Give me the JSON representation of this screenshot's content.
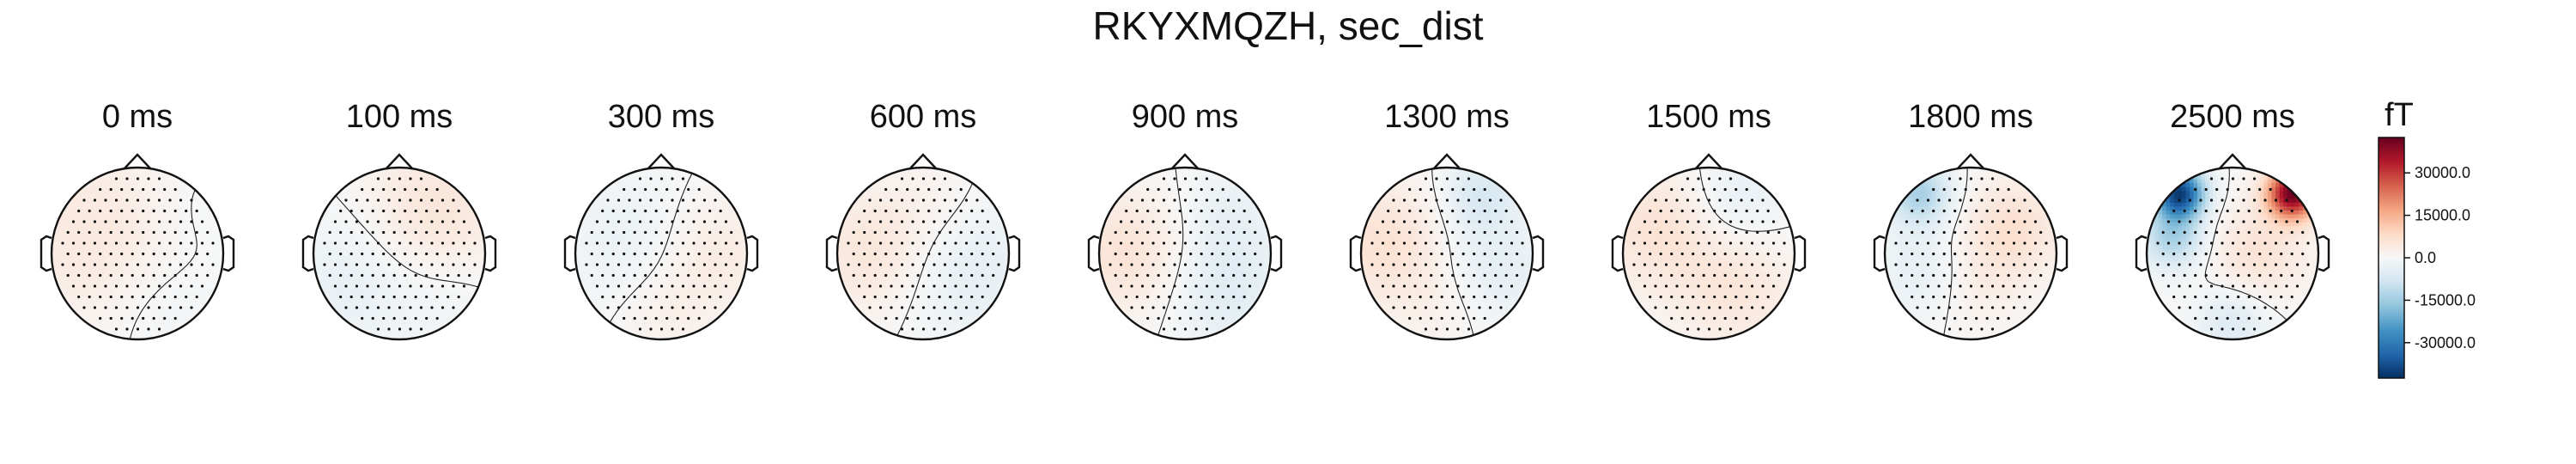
{
  "chart_data": {
    "type": "topomap",
    "title": "RKYXMQZH, sec_dist",
    "panels": [
      {
        "time_label": "0 ms",
        "blobs": [
          {
            "x": -0.5,
            "y": 0.2,
            "s": 0.75,
            "v": 4500
          },
          {
            "x": 0.3,
            "y": -0.6,
            "s": 0.5,
            "v": -2000
          },
          {
            "x": 0.6,
            "y": 0.5,
            "s": 0.4,
            "v": -1200
          }
        ]
      },
      {
        "time_label": "100 ms",
        "blobs": [
          {
            "x": 0.4,
            "y": 0.5,
            "s": 0.6,
            "v": 5500
          },
          {
            "x": -0.5,
            "y": -0.3,
            "s": 0.6,
            "v": -3500
          },
          {
            "x": 0.6,
            "y": -0.5,
            "s": 0.4,
            "v": -1500
          }
        ]
      },
      {
        "time_label": "300 ms",
        "blobs": [
          {
            "x": 0.6,
            "y": 0.0,
            "s": 0.5,
            "v": 4000
          },
          {
            "x": -0.3,
            "y": 0.1,
            "s": 0.6,
            "v": -3000
          },
          {
            "x": 0.0,
            "y": -0.7,
            "s": 0.4,
            "v": 2500
          }
        ]
      },
      {
        "time_label": "600 ms",
        "blobs": [
          {
            "x": -0.6,
            "y": 0.0,
            "s": 0.5,
            "v": 5500
          },
          {
            "x": 0.5,
            "y": -0.2,
            "s": 0.6,
            "v": -4000
          },
          {
            "x": 0.1,
            "y": 0.6,
            "s": 0.4,
            "v": 2000
          }
        ]
      },
      {
        "time_label": "900 ms",
        "blobs": [
          {
            "x": -0.7,
            "y": 0.0,
            "s": 0.5,
            "v": 6000
          },
          {
            "x": 0.5,
            "y": -0.4,
            "s": 0.5,
            "v": -5000
          },
          {
            "x": 0.5,
            "y": 0.5,
            "s": 0.4,
            "v": -2500
          }
        ]
      },
      {
        "time_label": "1300 ms",
        "blobs": [
          {
            "x": -0.7,
            "y": 0.1,
            "s": 0.5,
            "v": 6500
          },
          {
            "x": 0.4,
            "y": 0.7,
            "s": 0.3,
            "v": -6500
          },
          {
            "x": 0.5,
            "y": -0.2,
            "s": 0.5,
            "v": -4500
          },
          {
            "x": 0.0,
            "y": -0.6,
            "s": 0.4,
            "v": 2500
          }
        ]
      },
      {
        "time_label": "1500 ms",
        "blobs": [
          {
            "x": -0.6,
            "y": 0.3,
            "s": 0.5,
            "v": 6000
          },
          {
            "x": 0.3,
            "y": -0.4,
            "s": 0.5,
            "v": 5000
          },
          {
            "x": 0.3,
            "y": 0.6,
            "s": 0.4,
            "v": -4000
          }
        ]
      },
      {
        "time_label": "1800 ms",
        "blobs": [
          {
            "x": -0.6,
            "y": 0.7,
            "s": 0.25,
            "v": -14000
          },
          {
            "x": 0.5,
            "y": 0.3,
            "s": 0.4,
            "v": 6500
          },
          {
            "x": -0.5,
            "y": -0.2,
            "s": 0.4,
            "v": -4500
          },
          {
            "x": 0.0,
            "y": -0.3,
            "s": 0.4,
            "v": 3500
          }
        ]
      },
      {
        "time_label": "2500 ms",
        "blobs": [
          {
            "x": -0.62,
            "y": 0.7,
            "s": 0.2,
            "v": -40000
          },
          {
            "x": 0.7,
            "y": 0.7,
            "s": 0.2,
            "v": 42000
          },
          {
            "x": -0.7,
            "y": 0.2,
            "s": 0.25,
            "v": -14000
          },
          {
            "x": 0.3,
            "y": 0.0,
            "s": 0.4,
            "v": 6000
          },
          {
            "x": 0.0,
            "y": -0.8,
            "s": 0.3,
            "v": -6000
          }
        ]
      }
    ],
    "colorbar": {
      "unit": "fT",
      "cmap": "RdBu_r",
      "vmin": -42500,
      "vmax": 42500,
      "ticks": [
        30000,
        15000,
        0,
        -15000,
        -30000
      ],
      "tick_labels": [
        "30000.0",
        "15000.0",
        "0.0",
        "-15000.0",
        "-30000.0"
      ]
    }
  }
}
